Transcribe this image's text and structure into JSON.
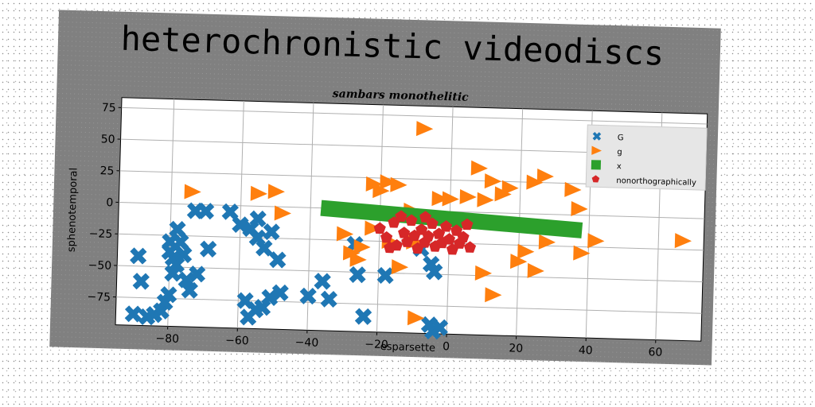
{
  "chart_data": {
    "type": "scatter",
    "title": "heterochronistic videodiscs",
    "subtitle": "sambars monothelitic",
    "xlabel": "esparsette",
    "ylabel": "sphenotemporal",
    "xlim": [
      -95,
      73
    ],
    "ylim": [
      -97,
      83
    ],
    "x_ticks": [
      -80,
      -60,
      -40,
      -20,
      0,
      20,
      40,
      60
    ],
    "y_ticks": [
      75,
      50,
      25,
      0,
      -25,
      -50,
      -75
    ],
    "grid": true,
    "legend_position": "top-right",
    "series": [
      {
        "name": "G",
        "marker": "x",
        "color": "#1f77b4",
        "points": [
          [
            -89,
            -42
          ],
          [
            -88,
            -62
          ],
          [
            -90,
            -88
          ],
          [
            -86,
            -90
          ],
          [
            -84,
            -88
          ],
          [
            -82,
            -85
          ],
          [
            -81,
            -78
          ],
          [
            -80,
            -72
          ],
          [
            -79,
            -55
          ],
          [
            -79,
            -43
          ],
          [
            -80,
            -38
          ],
          [
            -80,
            -30
          ],
          [
            -78,
            -20
          ],
          [
            -77,
            -30
          ],
          [
            -76,
            -40
          ],
          [
            -78,
            -48
          ],
          [
            -75,
            -60
          ],
          [
            -74,
            -68
          ],
          [
            -72,
            -55
          ],
          [
            -73,
            -5
          ],
          [
            -70,
            -5
          ],
          [
            -69,
            -35
          ],
          [
            -63,
            -5
          ],
          [
            -60,
            -15
          ],
          [
            -57,
            -18
          ],
          [
            -58,
            -75
          ],
          [
            -55,
            -82
          ],
          [
            -57,
            -88
          ],
          [
            -53,
            -80
          ],
          [
            -51,
            -72
          ],
          [
            -48,
            -68
          ],
          [
            -55,
            -25
          ],
          [
            -53,
            -33
          ],
          [
            -51,
            -20
          ],
          [
            -49,
            -42
          ],
          [
            -55,
            -10
          ],
          [
            -40,
            -70
          ],
          [
            -36,
            -58
          ],
          [
            -34,
            -72
          ],
          [
            -27,
            -28
          ],
          [
            -26,
            -52
          ],
          [
            -24,
            -85
          ],
          [
            -18,
            -52
          ],
          [
            -8,
            -30
          ],
          [
            -5,
            -42
          ],
          [
            -4,
            -48
          ],
          [
            -5,
            -90
          ],
          [
            -4,
            -95
          ],
          [
            -2,
            -92
          ]
        ]
      },
      {
        "name": "g",
        "marker": "triangle-right",
        "color": "#ff7f0e",
        "points": [
          [
            -74,
            10
          ],
          [
            -55,
            10
          ],
          [
            -50,
            12
          ],
          [
            -48,
            -5
          ],
          [
            -30,
            -20
          ],
          [
            -28,
            -35
          ],
          [
            -26,
            -40
          ],
          [
            -25,
            -30
          ],
          [
            -22,
            -15
          ],
          [
            -22,
            20
          ],
          [
            -20,
            15
          ],
          [
            -18,
            22
          ],
          [
            -15,
            20
          ],
          [
            -17,
            -25
          ],
          [
            -14,
            -45
          ],
          [
            -10,
            -25
          ],
          [
            -11,
            0
          ],
          [
            -8,
            65
          ],
          [
            -9,
            -85
          ],
          [
            -3,
            10
          ],
          [
            0,
            10
          ],
          [
            5,
            12
          ],
          [
            8,
            35
          ],
          [
            10,
            10
          ],
          [
            12,
            25
          ],
          [
            13,
            -65
          ],
          [
            15,
            15
          ],
          [
            10,
            -48
          ],
          [
            17,
            20
          ],
          [
            20,
            -38
          ],
          [
            22,
            -30
          ],
          [
            24,
            25
          ],
          [
            25,
            -45
          ],
          [
            27,
            30
          ],
          [
            28,
            -22
          ],
          [
            35,
            20
          ],
          [
            37,
            5
          ],
          [
            38,
            -30
          ],
          [
            42,
            -20
          ],
          [
            67,
            -18
          ]
        ]
      },
      {
        "name": "x",
        "marker": "square",
        "color": "#2ca02c",
        "segments": [
          {
            "from": [
              -37,
              0
            ],
            "to": [
              38,
              -12
            ]
          }
        ]
      },
      {
        "name": "nonorthographically",
        "marker": "pentagon",
        "color": "#d62728",
        "points": [
          [
            -20,
            -15
          ],
          [
            -18,
            -22
          ],
          [
            -16,
            -10
          ],
          [
            -15,
            -28
          ],
          [
            -13,
            -18
          ],
          [
            -12,
            -25
          ],
          [
            -11,
            -8
          ],
          [
            -10,
            -20
          ],
          [
            -9,
            -30
          ],
          [
            -8,
            -15
          ],
          [
            -7,
            -25
          ],
          [
            -6,
            -20
          ],
          [
            -5,
            -10
          ],
          [
            -4,
            -28
          ],
          [
            -3,
            -18
          ],
          [
            -2,
            -25
          ],
          [
            -1,
            -12
          ],
          [
            0,
            -22
          ],
          [
            1,
            -30
          ],
          [
            2,
            -15
          ],
          [
            3,
            -25
          ],
          [
            4,
            -20
          ],
          [
            5,
            -10
          ],
          [
            6,
            -28
          ],
          [
            -14,
            -5
          ],
          [
            -7,
            -5
          ],
          [
            -17,
            -30
          ]
        ]
      }
    ]
  }
}
